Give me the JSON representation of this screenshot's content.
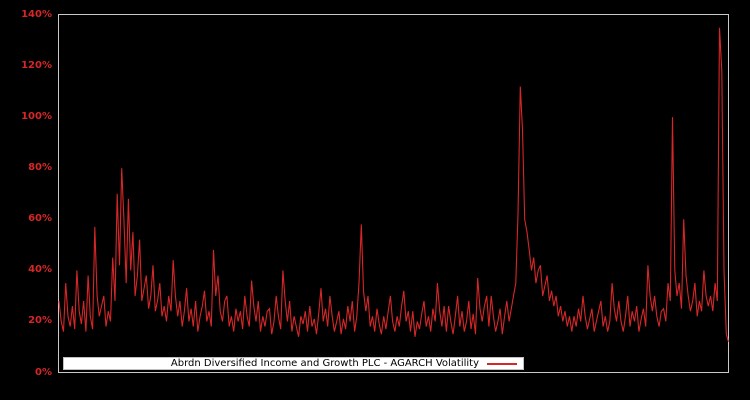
{
  "chart": {
    "background_color": "#000000",
    "plot_border_color": "#c9c9c9",
    "y_axis": {
      "tick_labels": [
        "0%",
        "20%",
        "40%",
        "60%",
        "80%",
        "100%",
        "120%",
        "140%"
      ],
      "label_color": "#d62728"
    },
    "x_axis": {
      "tick_labels": []
    },
    "legend": {
      "label": "Abrdn Diversified Income and Growth PLC - AGARCH Volatility",
      "line_color": "#d62728",
      "background_color": "#ffffff",
      "text_color": "#000000"
    }
  },
  "chart_data": {
    "type": "line",
    "title": "",
    "xlabel": "",
    "ylabel": "",
    "y_unit": "%",
    "ylim": [
      0,
      140
    ],
    "y_ticks_pct": [
      0,
      20,
      40,
      60,
      80,
      100,
      120,
      140
    ],
    "grid": false,
    "legend_position": "lower center inside plot",
    "series": [
      {
        "name": "Abrdn Diversified Income and Growth PLC - AGARCH Volatility",
        "color": "#d62728",
        "values_pct": [
          28,
          20,
          16,
          35,
          22,
          18,
          26,
          17,
          40,
          24,
          19,
          28,
          16,
          38,
          22,
          17,
          57,
          30,
          22,
          26,
          30,
          18,
          24,
          20,
          45,
          28,
          70,
          42,
          80,
          60,
          35,
          68,
          40,
          55,
          30,
          38,
          52,
          28,
          33,
          38,
          25,
          30,
          42,
          24,
          28,
          35,
          22,
          26,
          20,
          30,
          24,
          44,
          30,
          22,
          28,
          18,
          24,
          33,
          20,
          25,
          18,
          28,
          16,
          22,
          26,
          32,
          20,
          24,
          18,
          48,
          30,
          38,
          24,
          20,
          28,
          30,
          18,
          22,
          16,
          25,
          20,
          24,
          17,
          30,
          22,
          18,
          36,
          26,
          20,
          28,
          16,
          22,
          18,
          24,
          25,
          15,
          20,
          30,
          22,
          17,
          40,
          28,
          20,
          28,
          16,
          22,
          18,
          14,
          22,
          19,
          24,
          16,
          26,
          18,
          21,
          15,
          23,
          33,
          20,
          25,
          18,
          30,
          22,
          16,
          20,
          24,
          15,
          21,
          17,
          26,
          20,
          28,
          16,
          22,
          35,
          58,
          32,
          24,
          30,
          18,
          22,
          16,
          25,
          19,
          15,
          22,
          17,
          24,
          30,
          20,
          16,
          22,
          18,
          26,
          32,
          20,
          24,
          16,
          24,
          14,
          20,
          17,
          23,
          28,
          18,
          22,
          16,
          25,
          20,
          35,
          24,
          18,
          26,
          16,
          26,
          20,
          15,
          22,
          30,
          18,
          24,
          16,
          20,
          28,
          17,
          23,
          15,
          37,
          25,
          20,
          26,
          30,
          18,
          30,
          22,
          16,
          20,
          25,
          15,
          22,
          28,
          20,
          25,
          30,
          35,
          62,
          112,
          95,
          60,
          55,
          48,
          40,
          45,
          35,
          40,
          42,
          30,
          34,
          38,
          28,
          32,
          26,
          30,
          22,
          26,
          20,
          24,
          18,
          22,
          16,
          22,
          18,
          25,
          20,
          30,
          22,
          17,
          21,
          25,
          16,
          20,
          24,
          28,
          18,
          22,
          16,
          20,
          35,
          25,
          20,
          28,
          20,
          16,
          22,
          30,
          18,
          24,
          20,
          26,
          16,
          21,
          25,
          18,
          42,
          30,
          24,
          30,
          22,
          18,
          24,
          25,
          20,
          35,
          28,
          100,
          40,
          30,
          35,
          25,
          60,
          38,
          30,
          24,
          28,
          35,
          22,
          28,
          24,
          40,
          30,
          26,
          30,
          24,
          35,
          28,
          135,
          118,
          40,
          15,
          12
        ]
      }
    ]
  }
}
